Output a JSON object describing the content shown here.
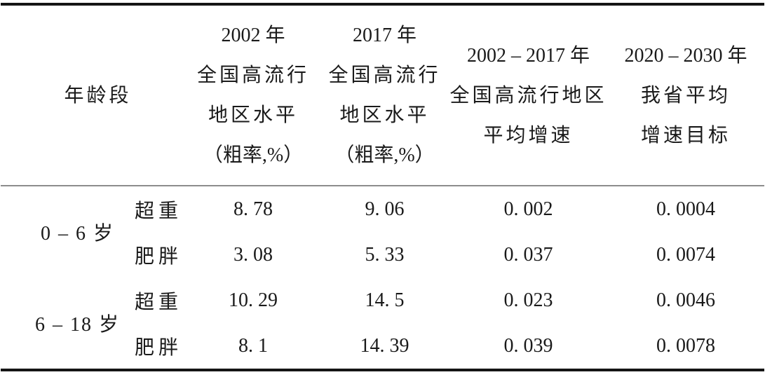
{
  "style": {
    "background": "#ffffff",
    "text_color": "#1a1a1a",
    "rule_heavy_color": "#151515",
    "rule_light_color": "#8c8c8c"
  },
  "table": {
    "header": {
      "age_group": "年龄段",
      "national_2002": {
        "lines": [
          "2002 年",
          "全国高流行",
          "地区水平",
          "（粗率,%）"
        ]
      },
      "national_2017": {
        "lines": [
          "2017 年",
          "全国高流行",
          "地区水平",
          "（粗率,%）"
        ]
      },
      "growth_2002_2017": {
        "lines": [
          "2002 – 2017 年",
          "全国高流行地区",
          "平均增速"
        ]
      },
      "target_2020_2030": {
        "lines": [
          "2020 – 2030 年",
          "我省平均",
          "增速目标"
        ]
      }
    },
    "rows": [
      {
        "age": "0 – 6 岁",
        "category": "超重",
        "national_2002": "8. 78",
        "national_2017": "9. 06",
        "growth": "0. 002",
        "target": "0. 0004"
      },
      {
        "category": "肥胖",
        "national_2002": "3. 08",
        "national_2017": "5. 33",
        "growth": "0. 037",
        "target": "0. 0074"
      },
      {
        "age": "6 – 18 岁",
        "category": "超重",
        "national_2002": "10. 29",
        "national_2017": "14. 5",
        "growth": "0. 023",
        "target": "0. 0046"
      },
      {
        "category": "肥胖",
        "national_2002": "8. 1",
        "national_2017": "14. 39",
        "growth": "0. 039",
        "target": "0. 0078"
      }
    ]
  }
}
